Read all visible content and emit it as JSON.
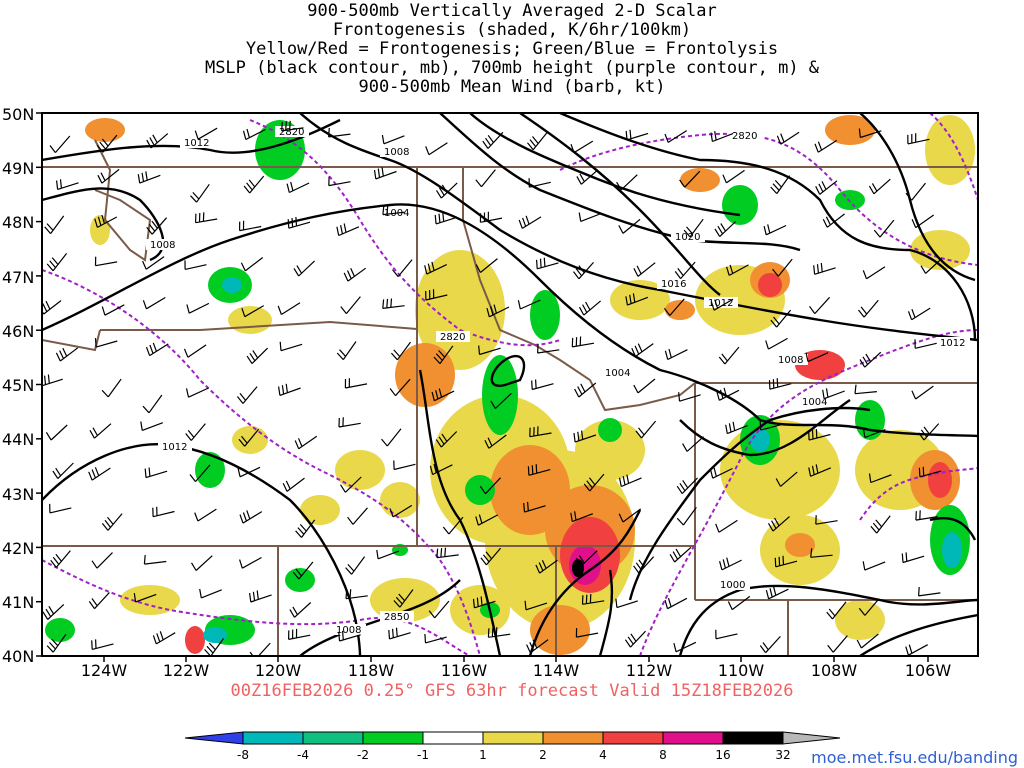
{
  "title_lines": [
    "900-500mb Vertically Averaged 2-D Scalar",
    "Frontogenesis (shaded, K/6hr/100km)",
    "Yellow/Red = Frontogenesis;  Green/Blue = Frontolysis",
    "MSLP (black contour, mb), 700mb height (purple contour, m) &",
    "900-500mb Mean Wind (barb, kt)"
  ],
  "lat_labels": [
    "50N",
    "49N",
    "48N",
    "47N",
    "46N",
    "45N",
    "44N",
    "43N",
    "42N",
    "41N",
    "40N"
  ],
  "lon_labels": [
    "124W",
    "122W",
    "120W",
    "118W",
    "116W",
    "114W",
    "112W",
    "110W",
    "108W",
    "106W"
  ],
  "mslp_labels": [
    "1012",
    "1008",
    "1004",
    "1008",
    "1020",
    "1016",
    "1012",
    "1004",
    "1012",
    "1008",
    "1004",
    "1012",
    "1000",
    "1008"
  ],
  "height_labels": [
    "2820",
    "2820",
    "2820",
    "2850"
  ],
  "footer": "00Z16FEB2026 0.25° GFS 63hr forecast Valid 15Z18FEB2026",
  "credit": "moe.met.fsu.edu/banding",
  "colorbar": {
    "ticks": [
      "-8",
      "-4",
      "-2",
      "-1",
      "1",
      "2",
      "4",
      "8",
      "16",
      "32"
    ],
    "colors": [
      "#3040e8",
      "#00b8b8",
      "#10c080",
      "#00cc22",
      "#ffffff",
      "#e8d84a",
      "#f09030",
      "#f04040",
      "#e0108a",
      "#000000",
      "#b8b8b8"
    ]
  },
  "colors": {
    "mslp": "#000000",
    "height": "#a020c8",
    "borders": "#7a5a48",
    "frontogenesis_weak": "#e8d84a",
    "frontogenesis_mod": "#f09030",
    "frontogenesis_strong": "#f04040",
    "frontogenesis_max": "#e0108a",
    "frontolysis": "#00cc22"
  }
}
